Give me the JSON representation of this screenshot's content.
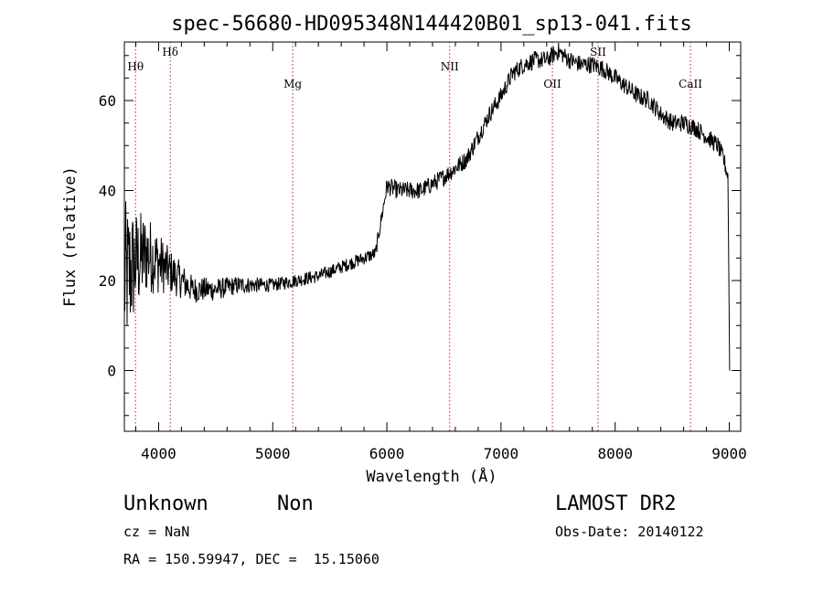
{
  "chart_data": {
    "type": "line",
    "title": "spec-56680-HD095348N144420B01_sp13-041.fits",
    "xlabel": "Wavelength (Å)",
    "ylabel": "Flux (relative)",
    "xlim": [
      3700,
      9100
    ],
    "ylim": [
      -13.5,
      73
    ],
    "x_ticks": [
      4000,
      5000,
      6000,
      7000,
      8000,
      9000
    ],
    "x_tick_labels": [
      "4000",
      "5000",
      "6000",
      "7000",
      "8000",
      "9000"
    ],
    "y_ticks": [
      0,
      20,
      40,
      60
    ],
    "y_tick_labels": [
      "0",
      "20",
      "40",
      "60"
    ],
    "line_color": "#000000",
    "spectral_lines": [
      {
        "label": "Hθ",
        "x": 3798
      },
      {
        "label": "Hδ",
        "x": 4102
      },
      {
        "label": "Mg",
        "x": 5175
      },
      {
        "label": "NII",
        "x": 6550
      },
      {
        "label": "OII",
        "x": 7450
      },
      {
        "label": "SII",
        "x": 7850
      },
      {
        "label": "CaII",
        "x": 8660
      }
    ],
    "spectrum_envelope": {
      "x": [
        3700,
        3750,
        3800,
        3900,
        4000,
        4100,
        4200,
        4300,
        4500,
        4700,
        5000,
        5200,
        5400,
        5600,
        5800,
        5900,
        6000,
        6100,
        6300,
        6500,
        6700,
        6800,
        6900,
        7000,
        7100,
        7200,
        7300,
        7400,
        7500,
        7550,
        7600,
        7700,
        7800,
        7900,
        8000,
        8100,
        8200,
        8300,
        8400,
        8500,
        8600,
        8700,
        8800,
        8900,
        8950,
        9000
      ],
      "y": [
        20,
        22,
        24,
        26,
        24,
        22,
        20,
        18,
        18,
        19,
        19,
        20,
        21,
        23,
        25,
        26,
        41,
        40,
        40,
        43,
        47,
        52,
        57,
        61,
        66,
        68,
        69,
        69,
        71,
        70,
        69,
        68,
        68,
        67,
        65,
        63,
        61,
        60,
        57,
        55,
        55,
        54,
        52,
        50,
        47,
        42
      ],
      "noise": [
        18,
        15,
        12,
        9,
        7,
        5,
        4,
        3,
        2.5,
        2,
        1.5,
        1.5,
        1.5,
        1.5,
        1.5,
        1.5,
        2,
        2,
        2,
        2,
        2,
        2,
        2,
        2,
        2,
        2,
        2,
        2,
        2,
        2,
        2,
        2,
        2,
        2,
        2,
        2,
        2,
        2,
        2,
        2,
        2,
        2,
        2,
        2,
        2,
        2
      ]
    }
  },
  "footer": {
    "object_class": "Unknown",
    "object_subclass": "Non",
    "survey": "LAMOST DR2",
    "cz": "cz = NaN",
    "obs_date": "Obs-Date: 20140122",
    "coords": "RA = 150.59947, DEC =  15.15060"
  }
}
